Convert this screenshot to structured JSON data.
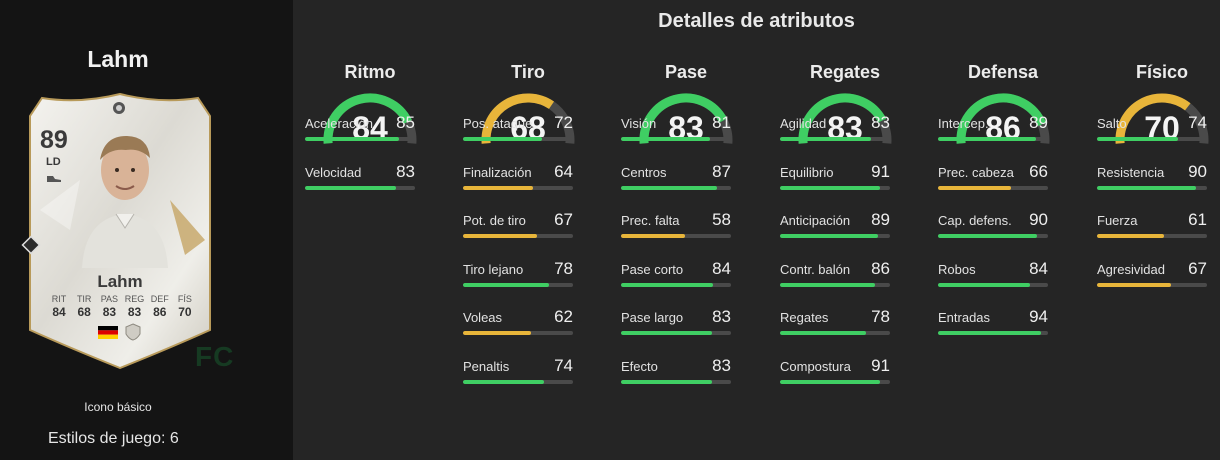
{
  "player": {
    "name": "Lahm",
    "version": "Icono básico",
    "playstyles_label": "Estilos de juego: 6"
  },
  "card": {
    "rating": "89",
    "position": "LD",
    "name": "Lahm",
    "stats": [
      {
        "label": "RIT",
        "value": "84"
      },
      {
        "label": "TIR",
        "value": "68"
      },
      {
        "label": "PAS",
        "value": "83"
      },
      {
        "label": "REG",
        "value": "83"
      },
      {
        "label": "DEF",
        "value": "86"
      },
      {
        "label": "FÍS",
        "value": "70"
      }
    ],
    "icons": [
      "germany-flag-icon",
      "icon-badge-icon",
      "crest-icon",
      "boot-icon"
    ]
  },
  "watermark": "FC",
  "title": "Detalles de atributos",
  "colors": {
    "green": "#3fce63",
    "yellow": "#e8b53a",
    "track": "#4a4a4a"
  },
  "categories": [
    {
      "name": "Ritmo",
      "value": "84",
      "color": "#3fce63",
      "attributes": [
        {
          "name": "Aceleración",
          "value": "85"
        },
        {
          "name": "Velocidad",
          "value": "83"
        }
      ]
    },
    {
      "name": "Tiro",
      "value": "68",
      "color": "#e8b53a",
      "attributes": [
        {
          "name": "Pos. ataque",
          "value": "72"
        },
        {
          "name": "Finalización",
          "value": "64"
        },
        {
          "name": "Pot. de tiro",
          "value": "67"
        },
        {
          "name": "Tiro lejano",
          "value": "78"
        },
        {
          "name": "Voleas",
          "value": "62"
        },
        {
          "name": "Penaltis",
          "value": "74"
        }
      ]
    },
    {
      "name": "Pase",
      "value": "83",
      "color": "#3fce63",
      "attributes": [
        {
          "name": "Visión",
          "value": "81"
        },
        {
          "name": "Centros",
          "value": "87"
        },
        {
          "name": "Prec. falta",
          "value": "58"
        },
        {
          "name": "Pase corto",
          "value": "84"
        },
        {
          "name": "Pase largo",
          "value": "83"
        },
        {
          "name": "Efecto",
          "value": "83"
        }
      ]
    },
    {
      "name": "Regates",
      "value": "83",
      "color": "#3fce63",
      "attributes": [
        {
          "name": "Agilidad",
          "value": "83"
        },
        {
          "name": "Equilibrio",
          "value": "91"
        },
        {
          "name": "Anticipación",
          "value": "89"
        },
        {
          "name": "Contr. balón",
          "value": "86"
        },
        {
          "name": "Regates",
          "value": "78"
        },
        {
          "name": "Compostura",
          "value": "91"
        }
      ]
    },
    {
      "name": "Defensa",
      "value": "86",
      "color": "#3fce63",
      "attributes": [
        {
          "name": "Intercep.",
          "value": "89"
        },
        {
          "name": "Prec. cabeza",
          "value": "66"
        },
        {
          "name": "Cap. defens.",
          "value": "90"
        },
        {
          "name": "Robos",
          "value": "84"
        },
        {
          "name": "Entradas",
          "value": "94"
        }
      ]
    },
    {
      "name": "Físico",
      "value": "70",
      "color": "#e8b53a",
      "attributes": [
        {
          "name": "Salto",
          "value": "74"
        },
        {
          "name": "Resistencia",
          "value": "90"
        },
        {
          "name": "Fuerza",
          "value": "61"
        },
        {
          "name": "Agresividad",
          "value": "67"
        }
      ]
    }
  ]
}
